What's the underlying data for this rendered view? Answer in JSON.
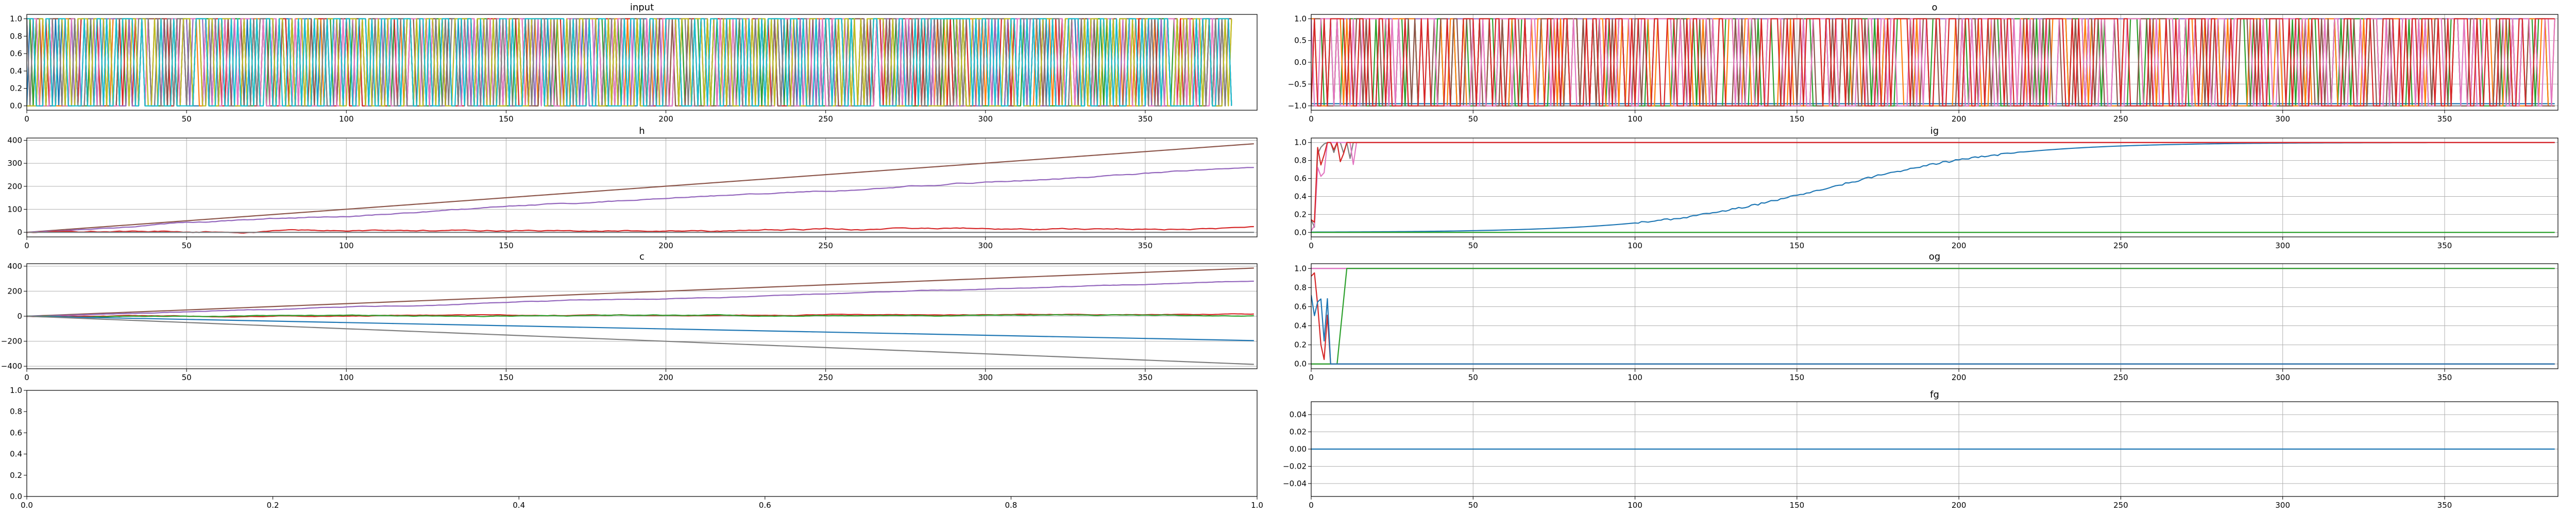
{
  "palette": [
    "#1f77b4",
    "#ff7f0e",
    "#2ca02c",
    "#d62728",
    "#9467bd",
    "#8c564b",
    "#e377c2",
    "#7f7f7f",
    "#bcbd22",
    "#17becf"
  ],
  "chart_data": [
    {
      "id": "input",
      "type": "line",
      "title": "input",
      "grid": false,
      "xlim": [
        0,
        385
      ],
      "ylim": [
        -0.05,
        1.05
      ],
      "xticks": [
        0,
        50,
        100,
        150,
        200,
        250,
        300,
        350
      ],
      "xticklabels": [
        "0",
        "50",
        "100",
        "150",
        "200",
        "250",
        "300",
        "350"
      ],
      "yticks": [
        0,
        0.2,
        0.4,
        0.6,
        0.8,
        1.0
      ],
      "yticklabels": [
        "0.0",
        "0.2",
        "0.4",
        "0.6",
        "0.8",
        "1.0"
      ],
      "n_points": 378,
      "series": [
        {
          "color": "#1f77b4",
          "pattern": "random_binary",
          "seed": 1
        },
        {
          "color": "#ff7f0e",
          "pattern": "random_binary",
          "seed": 2
        },
        {
          "color": "#2ca02c",
          "pattern": "random_binary",
          "seed": 3
        },
        {
          "color": "#d62728",
          "pattern": "random_binary",
          "seed": 4
        },
        {
          "color": "#9467bd",
          "pattern": "random_binary",
          "seed": 5
        },
        {
          "color": "#8c564b",
          "pattern": "random_binary",
          "seed": 6
        },
        {
          "color": "#e377c2",
          "pattern": "random_binary",
          "seed": 7
        },
        {
          "color": "#7f7f7f",
          "pattern": "random_binary",
          "seed": 8
        },
        {
          "color": "#bcbd22",
          "pattern": "random_binary",
          "seed": 9
        },
        {
          "color": "#17becf",
          "pattern": "random_binary",
          "seed": 10
        }
      ]
    },
    {
      "id": "o",
      "type": "line",
      "title": "o",
      "grid": true,
      "xlim": [
        0,
        385
      ],
      "ylim": [
        -1.1,
        1.1
      ],
      "xticks": [
        0,
        50,
        100,
        150,
        200,
        250,
        300,
        350
      ],
      "xticklabels": [
        "0",
        "50",
        "100",
        "150",
        "200",
        "250",
        "300",
        "350"
      ],
      "yticks": [
        -1.0,
        -0.5,
        0.0,
        0.5,
        1.0
      ],
      "yticklabels": [
        "−1.0",
        "−0.5",
        "0.0",
        "0.5",
        "1.0"
      ],
      "n_points": 385,
      "series": [
        {
          "color": "#1f77b4",
          "pattern": "const",
          "value": -0.95
        },
        {
          "color": "#7f7f7f",
          "pattern": "const",
          "value": -1.0
        },
        {
          "color": "#9467bd",
          "pattern": "const",
          "value": 1.0
        },
        {
          "color": "#2ca02c",
          "pattern": "random_pm1",
          "seed": 21
        },
        {
          "color": "#ff7f0e",
          "pattern": "random_pm1",
          "seed": 22
        },
        {
          "color": "#8c564b",
          "pattern": "random_pm1",
          "seed": 23
        },
        {
          "color": "#e377c2",
          "pattern": "random_pm1",
          "seed": 24
        },
        {
          "color": "#d62728",
          "pattern": "random_pm1",
          "seed": 25
        }
      ]
    },
    {
      "id": "h",
      "type": "line",
      "title": "h",
      "grid": true,
      "xlim": [
        0,
        385
      ],
      "ylim": [
        -20,
        410
      ],
      "xticks": [
        0,
        50,
        100,
        150,
        200,
        250,
        300,
        350
      ],
      "xticklabels": [
        "0",
        "50",
        "100",
        "150",
        "200",
        "250",
        "300",
        "350"
      ],
      "yticks": [
        0,
        100,
        200,
        300,
        400
      ],
      "yticklabels": [
        "0",
        "100",
        "200",
        "300",
        "400"
      ],
      "n_points": 385,
      "series": [
        {
          "color": "#8c564b",
          "pattern": "linear",
          "end": 385
        },
        {
          "color": "#9467bd",
          "pattern": "linear_noisy",
          "end": 280,
          "seed": 31
        },
        {
          "color": "#d62728",
          "pattern": "noisy_low",
          "end": 20,
          "seed": 32
        },
        {
          "color": "#1f77b4",
          "pattern": "const",
          "value": 0
        },
        {
          "color": "#7f7f7f",
          "pattern": "const",
          "value": 0
        }
      ]
    },
    {
      "id": "ig",
      "type": "line",
      "title": "ig",
      "grid": true,
      "xlim": [
        0,
        385
      ],
      "ylim": [
        -0.05,
        1.05
      ],
      "xticks": [
        0,
        50,
        100,
        150,
        200,
        250,
        300,
        350
      ],
      "xticklabels": [
        "0",
        "50",
        "100",
        "150",
        "200",
        "250",
        "300",
        "350"
      ],
      "yticks": [
        0,
        0.2,
        0.4,
        0.6,
        0.8,
        1.0
      ],
      "yticklabels": [
        "0.0",
        "0.2",
        "0.4",
        "0.6",
        "0.8",
        "1.0"
      ],
      "n_points": 385,
      "series": [
        {
          "color": "#1f77b4",
          "pattern": "sigmoid",
          "mid": 160,
          "width": 28,
          "seed": 41
        },
        {
          "color": "#7f7f7f",
          "pattern": "early_spike_high",
          "seed": 42
        },
        {
          "color": "#e377c2",
          "pattern": "early_spike_high",
          "seed": 43
        },
        {
          "color": "#d62728",
          "pattern": "early_spike_high",
          "seed": 44
        },
        {
          "color": "#2ca02c",
          "pattern": "const",
          "value": 0.0
        }
      ]
    },
    {
      "id": "c",
      "type": "line",
      "title": "c",
      "grid": true,
      "xlim": [
        0,
        385
      ],
      "ylim": [
        -420,
        420
      ],
      "xticks": [
        0,
        50,
        100,
        150,
        200,
        250,
        300,
        350
      ],
      "xticklabels": [
        "0",
        "50",
        "100",
        "150",
        "200",
        "250",
        "300",
        "350"
      ],
      "yticks": [
        -400,
        -200,
        0,
        200,
        400
      ],
      "yticklabels": [
        "−400",
        "−200",
        "0",
        "200",
        "400"
      ],
      "n_points": 385,
      "series": [
        {
          "color": "#8c564b",
          "pattern": "linear",
          "end": 385
        },
        {
          "color": "#9467bd",
          "pattern": "linear_noisy",
          "end": 280,
          "seed": 51
        },
        {
          "color": "#d62728",
          "pattern": "noisy_low",
          "end": 20,
          "seed": 52
        },
        {
          "color": "#2ca02c",
          "pattern": "noisy_low",
          "end": 8,
          "seed": 53
        },
        {
          "color": "#1f77b4",
          "pattern": "linear",
          "end": -195
        },
        {
          "color": "#7f7f7f",
          "pattern": "linear",
          "end": -385
        }
      ]
    },
    {
      "id": "og",
      "type": "line",
      "title": "og",
      "grid": true,
      "xlim": [
        0,
        385
      ],
      "ylim": [
        -0.05,
        1.05
      ],
      "xticks": [
        0,
        50,
        100,
        150,
        200,
        250,
        300,
        350
      ],
      "xticklabels": [
        "0",
        "50",
        "100",
        "150",
        "200",
        "250",
        "300",
        "350"
      ],
      "yticks": [
        0,
        0.2,
        0.4,
        0.6,
        0.8,
        1.0
      ],
      "yticklabels": [
        "0.0",
        "0.2",
        "0.4",
        "0.6",
        "0.8",
        "1.0"
      ],
      "n_points": 385,
      "series": [
        {
          "color": "#9467bd",
          "pattern": "const",
          "value": 1.0
        },
        {
          "color": "#e377c2",
          "pattern": "const",
          "value": 1.0
        },
        {
          "color": "#7f7f7f",
          "pattern": "const",
          "value": 0.0
        },
        {
          "color": "#2ca02c",
          "pattern": "step_up",
          "from": 8,
          "to": 11,
          "low": 0,
          "high": 1
        },
        {
          "color": "#d62728",
          "pattern": "early_spike_low",
          "seed": 61
        },
        {
          "color": "#1f77b4",
          "pattern": "early_spike_low",
          "seed": 62
        }
      ]
    },
    {
      "id": "empty",
      "type": "line",
      "title": "",
      "grid": false,
      "xlim": [
        0,
        1
      ],
      "ylim": [
        0,
        1
      ],
      "xticks": [
        0,
        0.2,
        0.4,
        0.6,
        0.8,
        1.0
      ],
      "xticklabels": [
        "0.0",
        "0.2",
        "0.4",
        "0.6",
        "0.8",
        "1.0"
      ],
      "yticks": [
        0,
        0.2,
        0.4,
        0.6,
        0.8,
        1.0
      ],
      "yticklabels": [
        "0.0",
        "0.2",
        "0.4",
        "0.6",
        "0.8",
        "1.0"
      ],
      "n_points": 0,
      "series": []
    },
    {
      "id": "fg",
      "type": "line",
      "title": "fg",
      "grid": true,
      "xlim": [
        0,
        385
      ],
      "ylim": [
        -0.055,
        0.055
      ],
      "xticks": [
        0,
        50,
        100,
        150,
        200,
        250,
        300,
        350
      ],
      "xticklabels": [
        "0",
        "50",
        "100",
        "150",
        "200",
        "250",
        "300",
        "350"
      ],
      "yticks": [
        -0.04,
        -0.02,
        0.0,
        0.02,
        0.04
      ],
      "yticklabels": [
        "−0.04",
        "−0.02",
        "0.00",
        "0.02",
        "0.04"
      ],
      "n_points": 385,
      "series": [
        {
          "color": "#1f77b4",
          "pattern": "const",
          "value": 0.0
        }
      ]
    }
  ]
}
